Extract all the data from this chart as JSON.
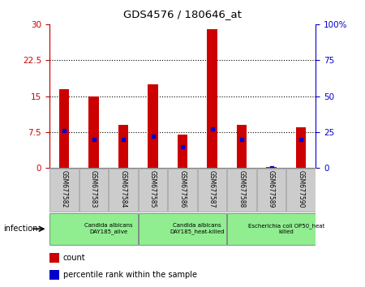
{
  "title": "GDS4576 / 180646_at",
  "samples": [
    "GSM677582",
    "GSM677583",
    "GSM677584",
    "GSM677585",
    "GSM677586",
    "GSM677587",
    "GSM677588",
    "GSM677589",
    "GSM677590"
  ],
  "counts": [
    16.5,
    15.0,
    9.0,
    17.5,
    7.0,
    29.0,
    9.0,
    0.2,
    8.5
  ],
  "percentiles": [
    26,
    20,
    20,
    22,
    15,
    27,
    20,
    0,
    20
  ],
  "ylim_left": [
    0,
    30
  ],
  "ylim_right": [
    0,
    100
  ],
  "yticks_left": [
    0,
    7.5,
    15,
    22.5,
    30
  ],
  "ytick_labels_left": [
    "0",
    "7.5",
    "15",
    "22.5",
    "30"
  ],
  "yticks_right": [
    0,
    25,
    50,
    75,
    100
  ],
  "ytick_labels_right": [
    "0",
    "25",
    "50",
    "75",
    "100%"
  ],
  "bar_color": "#cc0000",
  "dot_color": "#0000cc",
  "bar_width": 0.35,
  "groups": [
    {
      "label": "Candida albicans\nDAY185_alive",
      "start": 0,
      "end": 3,
      "color": "#90ee90"
    },
    {
      "label": "Candida albicans\nDAY185_heat-killed",
      "start": 3,
      "end": 6,
      "color": "#90ee90"
    },
    {
      "label": "Escherichia coli OP50_heat\nkilled",
      "start": 6,
      "end": 9,
      "color": "#90ee90"
    }
  ],
  "infection_label": "infection",
  "legend_count": "count",
  "legend_percentile": "percentile rank within the sample",
  "left_tick_color": "#cc0000",
  "right_tick_color": "#0000cc",
  "bar_area_bg": "#ffffff",
  "sample_area_bg": "#cccccc",
  "grid_dotted_yticks": [
    7.5,
    15,
    22.5
  ]
}
